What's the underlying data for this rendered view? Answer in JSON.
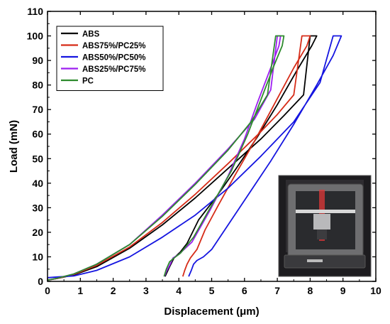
{
  "chart_data": {
    "type": "line",
    "title": "",
    "xlabel": "Displacement (μm)",
    "ylabel": "Load (mN)",
    "xlim": [
      0,
      10
    ],
    "ylim": [
      0,
      110
    ],
    "xticks": [
      "0",
      "1",
      "2",
      "3",
      "4",
      "5",
      "6",
      "7",
      "8",
      "9",
      "10"
    ],
    "yticks": [
      "0",
      "10",
      "20",
      "30",
      "40",
      "50",
      "60",
      "70",
      "80",
      "90",
      "100",
      "110"
    ],
    "grid": false,
    "legend_position": "top-left",
    "inset": "photograph of nanoindentation test instrument (bottom-right)",
    "series": [
      {
        "name": "ABS",
        "color": "#000000",
        "x": [
          0.0,
          0.3,
          0.8,
          1.5,
          2.5,
          3.5,
          4.5,
          5.5,
          6.5,
          7.2,
          7.8,
          8.0,
          8.2,
          8.05,
          7.6,
          7.0,
          6.4,
          5.8,
          5.2,
          4.6,
          4.25,
          4.05,
          3.85,
          3.72,
          3.58
        ],
        "y": [
          0.5,
          1.2,
          2.6,
          6.0,
          13.5,
          23.0,
          34.0,
          46.0,
          58.0,
          67.5,
          76.0,
          100.0,
          100.0,
          96.0,
          86.0,
          72.0,
          59.0,
          47.0,
          35.5,
          25.0,
          15.5,
          12.0,
          9.5,
          6.0,
          2.0
        ]
      },
      {
        "name": "ABS75%/PC25%",
        "color": "#d62c18",
        "x": [
          0.0,
          0.3,
          0.8,
          1.5,
          2.5,
          3.5,
          4.5,
          5.5,
          6.5,
          7.0,
          7.5,
          7.75,
          8.0,
          7.9,
          7.5,
          6.9,
          6.3,
          5.7,
          5.2,
          4.8,
          4.55,
          4.35,
          4.25,
          4.18,
          4.12
        ],
        "y": [
          0.5,
          1.2,
          2.8,
          6.5,
          14.0,
          24.0,
          35.5,
          48.0,
          61.0,
          68.0,
          76.0,
          100.0,
          100.0,
          96.0,
          87.0,
          72.0,
          57.0,
          43.0,
          31.0,
          21.0,
          13.0,
          9.5,
          7.0,
          4.5,
          2.0
        ]
      },
      {
        "name": "ABS50%/PC50%",
        "color": "#1515e0",
        "x": [
          0.0,
          0.3,
          0.8,
          1.5,
          2.5,
          3.5,
          4.5,
          5.5,
          6.5,
          7.5,
          8.3,
          8.7,
          8.95,
          8.7,
          8.2,
          7.5,
          6.8,
          6.1,
          5.5,
          5.0,
          4.75,
          4.55,
          4.45,
          4.38,
          4.3
        ],
        "y": [
          1.5,
          1.8,
          2.2,
          4.5,
          10.0,
          18.0,
          27.0,
          38.0,
          51.0,
          65.0,
          81.0,
          100.0,
          100.0,
          92.0,
          80.0,
          64.0,
          49.0,
          35.0,
          23.0,
          13.0,
          10.0,
          8.5,
          7.0,
          4.5,
          2.0
        ]
      },
      {
        "name": "ABS25%/PC75%",
        "color": "#9d1ff0",
        "x": [
          0.0,
          0.3,
          0.8,
          1.5,
          2.5,
          3.5,
          4.5,
          5.5,
          6.3,
          6.8,
          7.0,
          7.1,
          7.05,
          6.8,
          6.4,
          6.0,
          5.5,
          4.95,
          4.4,
          4.0,
          3.82,
          3.72,
          3.62,
          3.56
        ],
        "y": [
          0.5,
          1.3,
          3.0,
          7.0,
          15.0,
          27.0,
          40.0,
          54.0,
          66.0,
          78.0,
          100.0,
          100.0,
          96.0,
          87.0,
          73.0,
          58.0,
          43.0,
          29.0,
          16.0,
          11.0,
          9.5,
          6.5,
          4.0,
          2.0
        ]
      },
      {
        "name": "PC",
        "color": "#2e8b2e",
        "x": [
          0.0,
          0.3,
          0.8,
          1.5,
          2.5,
          3.5,
          4.5,
          5.5,
          6.2,
          6.7,
          6.95,
          7.2,
          7.15,
          6.9,
          6.5,
          6.1,
          5.6,
          5.0,
          4.45,
          4.05,
          3.85,
          3.72,
          3.62,
          3.55
        ],
        "y": [
          0.5,
          1.3,
          3.0,
          7.0,
          15.0,
          26.5,
          39.5,
          53.5,
          65.0,
          76.0,
          100.0,
          100.0,
          96.0,
          88.0,
          74.0,
          60.0,
          45.0,
          31.0,
          18.0,
          11.5,
          9.5,
          8.0,
          5.0,
          2.0
        ]
      }
    ]
  }
}
